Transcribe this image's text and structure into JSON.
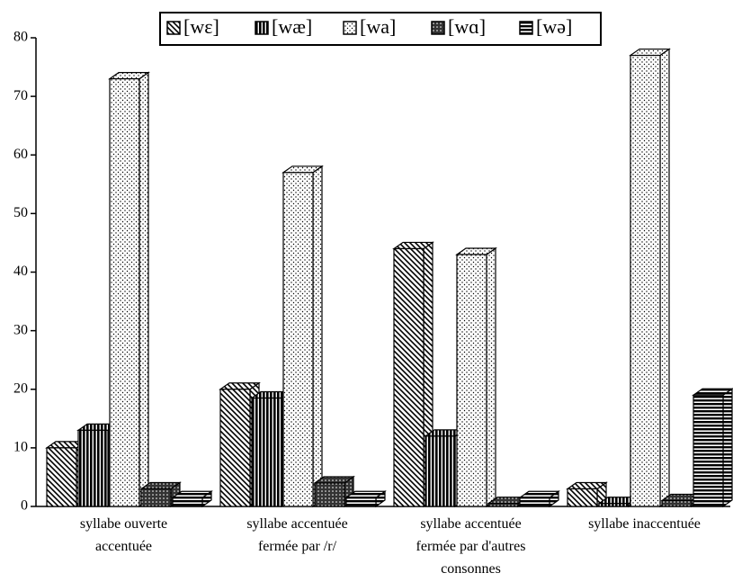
{
  "chart_data": {
    "type": "bar3d",
    "categories": [
      "syllabe ouverte accentuée",
      "syllabe accentuée fermée par /r/",
      "syllabe accentuée fermée par d'autres consonnes",
      "syllabe inaccentuée"
    ],
    "series": [
      {
        "name": "[wɛ]",
        "color": "#000000",
        "values": [
          10,
          20,
          44,
          3
        ]
      },
      {
        "name": "[wæ]",
        "color": "#000000",
        "values": [
          13,
          18.5,
          12,
          0.5
        ]
      },
      {
        "name": "[wa]",
        "color": "#000000",
        "values": [
          73,
          57,
          43,
          77
        ]
      },
      {
        "name": "[wɑ]",
        "color": "#000000",
        "values": [
          3,
          4,
          0.5,
          1
        ]
      },
      {
        "name": "[wə]",
        "color": "#000000",
        "values": [
          1.5,
          1.5,
          1.5,
          19
        ]
      }
    ],
    "ylim": [
      0,
      80
    ],
    "yticks": [
      0,
      10,
      20,
      30,
      40,
      50,
      60,
      70,
      80
    ],
    "legend": "top"
  }
}
